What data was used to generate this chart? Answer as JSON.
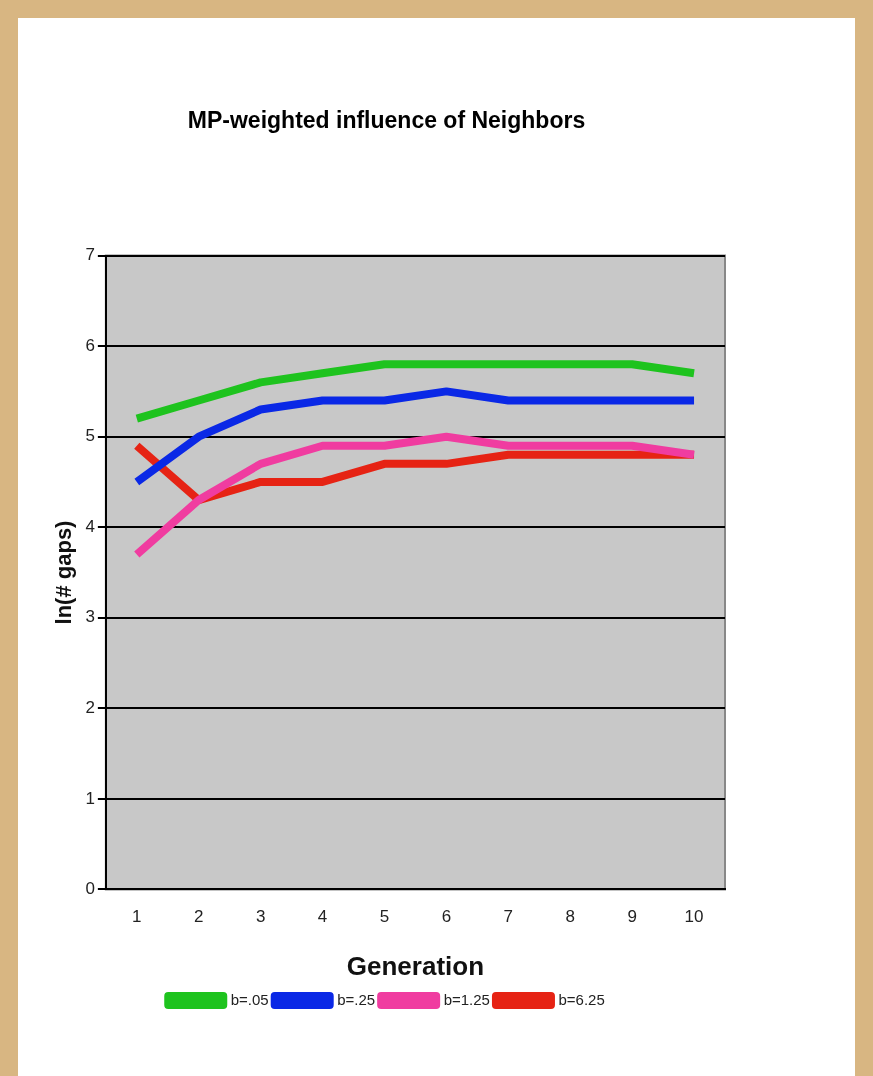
{
  "chart_data": {
    "type": "line",
    "title": "MP-weighted influence of Neighbors",
    "xlabel": "Generation",
    "ylabel": "ln(# gaps)",
    "categories": [
      "1",
      "2",
      "3",
      "4",
      "5",
      "6",
      "7",
      "8",
      "9",
      "10"
    ],
    "series": [
      {
        "name": "b=.05",
        "color": "#1ec31e",
        "values": [
          5.2,
          5.4,
          5.6,
          5.7,
          5.8,
          5.8,
          5.8,
          5.8,
          5.8,
          5.7
        ]
      },
      {
        "name": "b=.25",
        "color": "#0a28e6",
        "values": [
          4.5,
          5.0,
          5.3,
          5.4,
          5.4,
          5.5,
          5.4,
          5.4,
          5.4,
          5.4
        ]
      },
      {
        "name": "b=1.25",
        "color": "#f03ca0",
        "values": [
          3.7,
          4.3,
          4.7,
          4.9,
          4.9,
          5.0,
          4.9,
          4.9,
          4.9,
          4.8
        ]
      },
      {
        "name": "b=6.25",
        "color": "#e62314",
        "values": [
          4.9,
          4.3,
          4.5,
          4.5,
          4.7,
          4.7,
          4.8,
          4.8,
          4.8,
          4.8
        ]
      }
    ],
    "ylim": [
      0,
      7
    ],
    "yticks": [
      0,
      1,
      2,
      3,
      4,
      5,
      6,
      7
    ],
    "grid": "y",
    "legend": "bottom",
    "marker": "none",
    "line_style": "solid"
  }
}
